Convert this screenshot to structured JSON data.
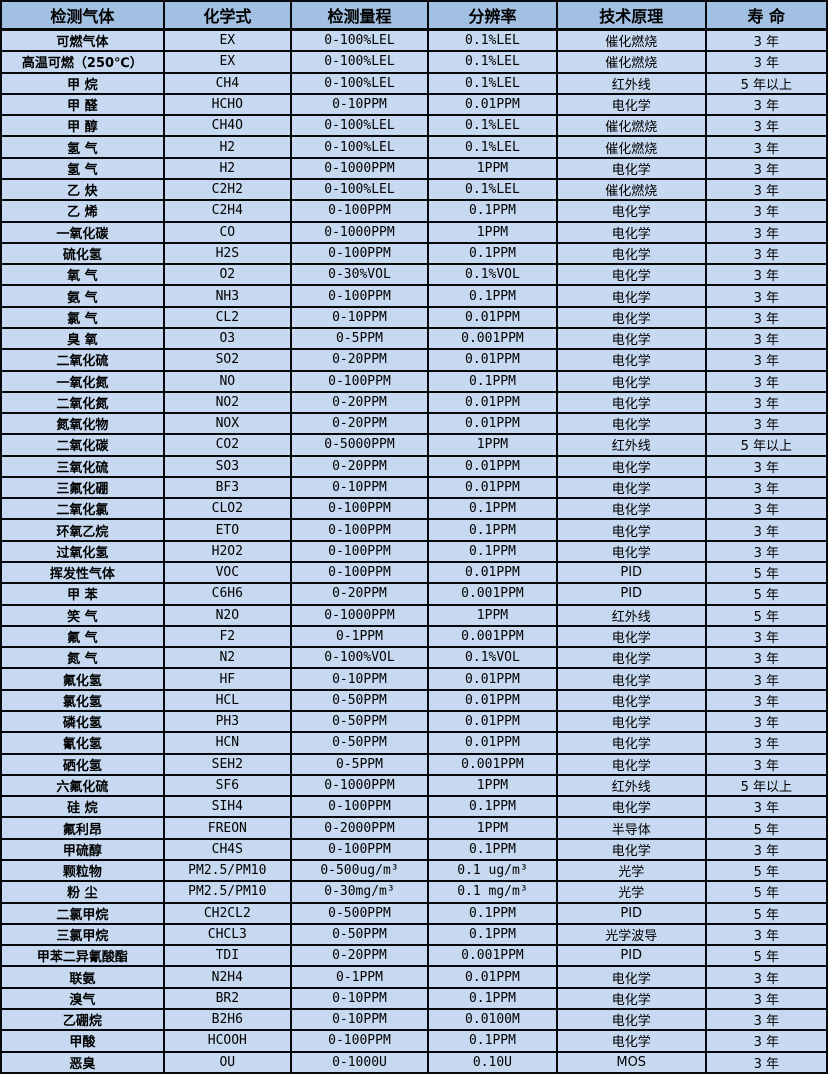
{
  "table": {
    "headers": [
      "检测气体",
      "化学式",
      "检测量程",
      "分辨率",
      "技术原理",
      "寿 命"
    ],
    "rows": [
      [
        "可燃气体",
        "EX",
        "0-100%LEL",
        "0.1%LEL",
        "催化燃烧",
        "3 年"
      ],
      [
        "高温可燃（250℃）",
        "EX",
        "0-100%LEL",
        "0.1%LEL",
        "催化燃烧",
        "3 年"
      ],
      [
        "甲 烷",
        "CH4",
        "0-100%LEL",
        "0.1%LEL",
        "红外线",
        "5 年以上"
      ],
      [
        "甲 醛",
        "HCHO",
        "0-10PPM",
        "0.01PPM",
        "电化学",
        "3 年"
      ],
      [
        "甲 醇",
        "CH4O",
        "0-100%LEL",
        "0.1%LEL",
        "催化燃烧",
        "3 年"
      ],
      [
        "氢 气",
        "H2",
        "0-100%LEL",
        "0.1%LEL",
        "催化燃烧",
        "3 年"
      ],
      [
        "氢 气",
        "H2",
        "0-1000PPM",
        "1PPM",
        "电化学",
        "3 年"
      ],
      [
        "乙 炔",
        "C2H2",
        "0-100%LEL",
        "0.1%LEL",
        "催化燃烧",
        "3 年"
      ],
      [
        "乙 烯",
        "C2H4",
        "0-100PPM",
        "0.1PPM",
        "电化学",
        "3 年"
      ],
      [
        "一氧化碳",
        "CO",
        "0-1000PPM",
        "1PPM",
        "电化学",
        "3 年"
      ],
      [
        "硫化氢",
        "H2S",
        "0-100PPM",
        "0.1PPM",
        "电化学",
        "3 年"
      ],
      [
        "氧 气",
        "O2",
        "0-30%VOL",
        "0.1%VOL",
        "电化学",
        "3 年"
      ],
      [
        "氨 气",
        "NH3",
        "0-100PPM",
        "0.1PPM",
        "电化学",
        "3 年"
      ],
      [
        "氯 气",
        "CL2",
        "0-10PPM",
        "0.01PPM",
        "电化学",
        "3 年"
      ],
      [
        "臭 氧",
        "O3",
        "0-5PPM",
        "0.001PPM",
        "电化学",
        "3 年"
      ],
      [
        "二氧化硫",
        "SO2",
        "0-20PPM",
        "0.01PPM",
        "电化学",
        "3 年"
      ],
      [
        "一氧化氮",
        "NO",
        "0-100PPM",
        "0.1PPM",
        "电化学",
        "3 年"
      ],
      [
        "二氧化氮",
        "NO2",
        "0-20PPM",
        "0.01PPM",
        "电化学",
        "3 年"
      ],
      [
        "氮氧化物",
        "NOX",
        "0-20PPM",
        "0.01PPM",
        "电化学",
        "3 年"
      ],
      [
        "二氧化碳",
        "CO2",
        "0-5000PPM",
        "1PPM",
        "红外线",
        "5 年以上"
      ],
      [
        "三氧化硫",
        "SO3",
        "0-20PPM",
        "0.01PPM",
        "电化学",
        "3 年"
      ],
      [
        "三氟化硼",
        "BF3",
        "0-10PPM",
        "0.01PPM",
        "电化学",
        "3 年"
      ],
      [
        "二氧化氯",
        "CLO2",
        "0-100PPM",
        "0.1PPM",
        "电化学",
        "3 年"
      ],
      [
        "环氧乙烷",
        "ETO",
        "0-100PPM",
        "0.1PPM",
        "电化学",
        "3 年"
      ],
      [
        "过氧化氢",
        "H2O2",
        "0-100PPM",
        "0.1PPM",
        "电化学",
        "3 年"
      ],
      [
        "挥发性气体",
        "VOC",
        "0-100PPM",
        "0.01PPM",
        "PID",
        "5 年"
      ],
      [
        "甲 苯",
        "C6H6",
        "0-20PPM",
        "0.001PPM",
        "PID",
        "5 年"
      ],
      [
        "笑 气",
        "N2O",
        "0-1000PPM",
        "1PPM",
        "红外线",
        "5 年"
      ],
      [
        "氟 气",
        "F2",
        "0-1PPM",
        "0.001PPM",
        "电化学",
        "3 年"
      ],
      [
        "氮 气",
        "N2",
        "0-100%VOL",
        "0.1%VOL",
        "电化学",
        "3 年"
      ],
      [
        "氟化氢",
        "HF",
        "0-10PPM",
        "0.01PPM",
        "电化学",
        "3 年"
      ],
      [
        "氯化氢",
        "HCL",
        "0-50PPM",
        "0.01PPM",
        "电化学",
        "3 年"
      ],
      [
        "磷化氢",
        "PH3",
        "0-50PPM",
        "0.01PPM",
        "电化学",
        "3 年"
      ],
      [
        "氰化氢",
        "HCN",
        "0-50PPM",
        "0.01PPM",
        "电化学",
        "3 年"
      ],
      [
        "硒化氢",
        "SEH2",
        "0-5PPM",
        "0.001PPM",
        "电化学",
        "3 年"
      ],
      [
        "六氟化硫",
        "SF6",
        "0-1000PPM",
        "1PPM",
        "红外线",
        "5 年以上"
      ],
      [
        "硅 烷",
        "SIH4",
        "0-100PPM",
        "0.1PPM",
        "电化学",
        "3 年"
      ],
      [
        "氟利昂",
        "FREON",
        "0-2000PPM",
        "1PPM",
        "半导体",
        "5 年"
      ],
      [
        "甲硫醇",
        "CH4S",
        "0-100PPM",
        "0.1PPM",
        "电化学",
        "3 年"
      ],
      [
        "颗粒物",
        "PM2.5/PM10",
        "0-500ug/m³",
        "0.1 ug/m³",
        "光学",
        "5 年"
      ],
      [
        "粉 尘",
        "PM2.5/PM10",
        "0-30mg/m³",
        "0.1 mg/m³",
        "光学",
        "5 年"
      ],
      [
        "二氯甲烷",
        "CH2CL2",
        "0-500PPM",
        "0.1PPM",
        "PID",
        "5 年"
      ],
      [
        "三氯甲烷",
        "CHCL3",
        "0-50PPM",
        "0.1PPM",
        "光学波导",
        "3 年"
      ],
      [
        "甲苯二异氰酸酯",
        "TDI",
        "0-20PPM",
        "0.001PPM",
        "PID",
        "5 年"
      ],
      [
        "联氨",
        "N2H4",
        "0-1PPM",
        "0.01PPM",
        "电化学",
        "3 年"
      ],
      [
        "溴气",
        "BR2",
        "0-10PPM",
        "0.1PPM",
        "电化学",
        "3 年"
      ],
      [
        "乙硼烷",
        "B2H6",
        "0-10PPM",
        "0.0100M",
        "电化学",
        "3 年"
      ],
      [
        "甲酸",
        "HCOOH",
        "0-100PPM",
        "0.1PPM",
        "电化学",
        "3 年"
      ],
      [
        "恶臭",
        "OU",
        "0-1000U",
        "0.10U",
        "MOS",
        "3 年"
      ]
    ]
  },
  "colors": {
    "header_bg": "#a2c1e2",
    "row_bg": "#c6d9f0",
    "border": "#08090c",
    "text": "#000000"
  },
  "column_widths_pct": [
    19.7,
    15.4,
    16.6,
    15.6,
    18.0,
    14.7
  ]
}
